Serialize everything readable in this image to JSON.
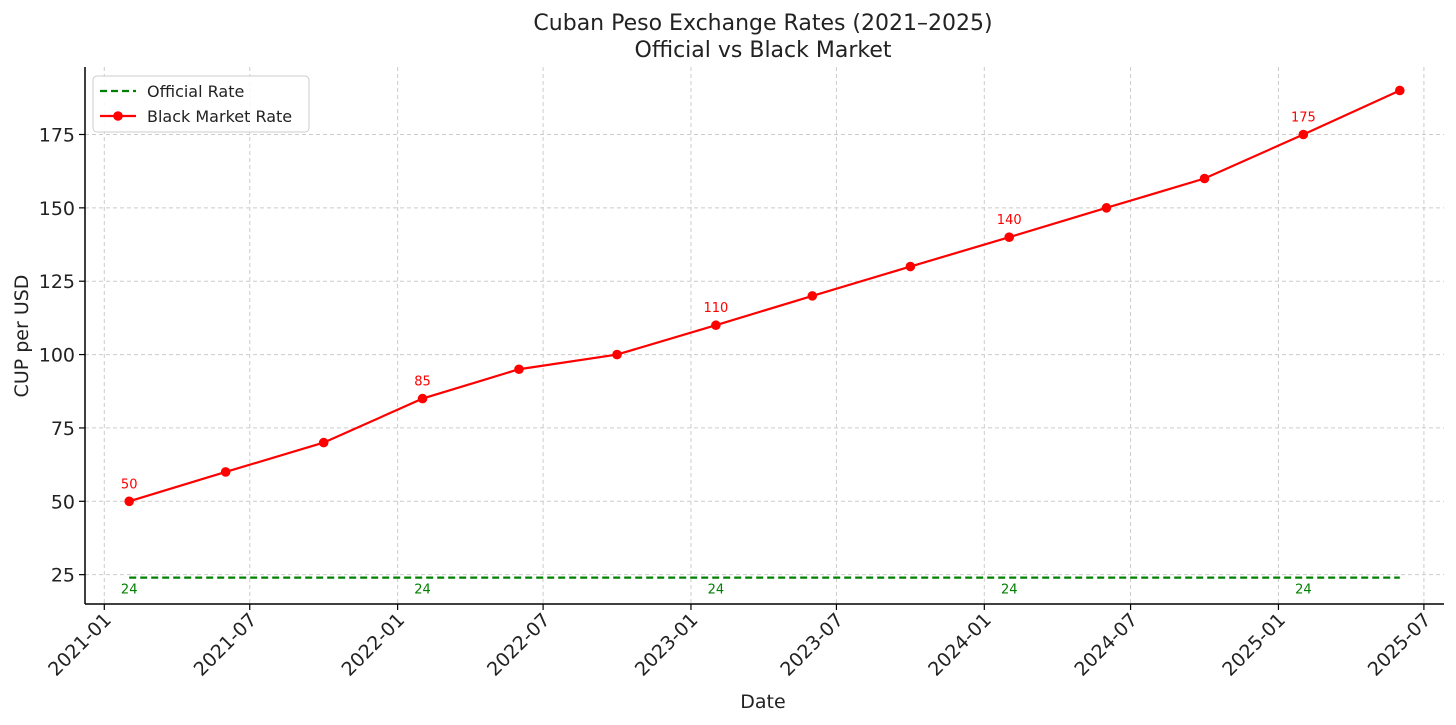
{
  "chart_data": {
    "type": "line",
    "title": "Cuban Peso Exchange Rates (2021–2025)",
    "subtitle": "Official vs Black Market",
    "xlabel": "Date",
    "ylabel": "CUP per USD",
    "ylim": [
      15,
      198
    ],
    "xlim": [
      "2020-12-08",
      "2025-07-26"
    ],
    "grid": true,
    "legend_position": "upper-left",
    "yticks": [
      25,
      50,
      75,
      100,
      125,
      150,
      175
    ],
    "xticks": [
      {
        "date": "2021-01-01",
        "label": "2021-01"
      },
      {
        "date": "2021-07-01",
        "label": "2021-07"
      },
      {
        "date": "2022-01-01",
        "label": "2022-01"
      },
      {
        "date": "2022-07-01",
        "label": "2022-07"
      },
      {
        "date": "2023-01-01",
        "label": "2023-01"
      },
      {
        "date": "2023-07-01",
        "label": "2023-07"
      },
      {
        "date": "2024-01-01",
        "label": "2024-01"
      },
      {
        "date": "2024-07-01",
        "label": "2024-07"
      },
      {
        "date": "2025-01-01",
        "label": "2025-01"
      },
      {
        "date": "2025-07-01",
        "label": "2025-07"
      }
    ],
    "series": [
      {
        "name": "Official Rate",
        "style": "dashed",
        "color": "#008000",
        "points": [
          {
            "date": "2021-02-01",
            "value": 24
          },
          {
            "date": "2025-06-01",
            "value": 24
          }
        ],
        "annotations": [
          {
            "date": "2021-02-01",
            "value": 24,
            "label": "24"
          },
          {
            "date": "2022-02-01",
            "value": 24,
            "label": "24"
          },
          {
            "date": "2023-02-01",
            "value": 24,
            "label": "24"
          },
          {
            "date": "2024-02-01",
            "value": 24,
            "label": "24"
          },
          {
            "date": "2025-02-01",
            "value": 24,
            "label": "24"
          }
        ]
      },
      {
        "name": "Black Market Rate",
        "style": "solid-markers",
        "color": "#ff0000",
        "points": [
          {
            "date": "2021-02-01",
            "value": 50
          },
          {
            "date": "2021-06-01",
            "value": 60
          },
          {
            "date": "2021-10-01",
            "value": 70
          },
          {
            "date": "2022-02-01",
            "value": 85
          },
          {
            "date": "2022-06-01",
            "value": 95
          },
          {
            "date": "2022-10-01",
            "value": 100
          },
          {
            "date": "2023-02-01",
            "value": 110
          },
          {
            "date": "2023-06-01",
            "value": 120
          },
          {
            "date": "2023-10-01",
            "value": 130
          },
          {
            "date": "2024-02-01",
            "value": 140
          },
          {
            "date": "2024-06-01",
            "value": 150
          },
          {
            "date": "2024-10-01",
            "value": 160
          },
          {
            "date": "2025-02-01",
            "value": 175
          },
          {
            "date": "2025-06-01",
            "value": 190
          }
        ],
        "annotations": [
          {
            "date": "2021-02-01",
            "value": 50,
            "label": "50"
          },
          {
            "date": "2022-02-01",
            "value": 85,
            "label": "85"
          },
          {
            "date": "2023-02-01",
            "value": 110,
            "label": "110"
          },
          {
            "date": "2024-02-01",
            "value": 140,
            "label": "140"
          },
          {
            "date": "2025-02-01",
            "value": 175,
            "label": "175"
          }
        ]
      }
    ]
  }
}
